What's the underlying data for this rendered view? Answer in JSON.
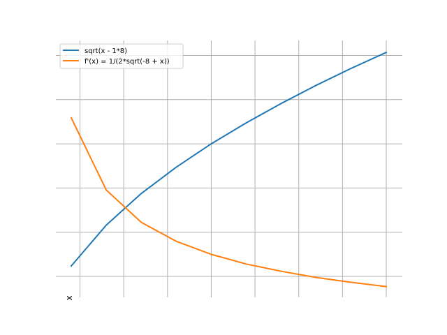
{
  "chart_data": {
    "type": "line",
    "title": "",
    "xlabel": "x",
    "ylabel": "",
    "xlim": [
      8.18,
      10.0
    ],
    "ylim": [
      0.33,
      1.46
    ],
    "grid": true,
    "x_gridlines": [
      8.25,
      8.5,
      8.75,
      9.0,
      9.25,
      9.5,
      9.75,
      10.0
    ],
    "y_gridlines": [
      0.4,
      0.6,
      0.8,
      1.0,
      1.2,
      1.4
    ],
    "legend_position": "top-left",
    "x": [
      8.2,
      8.4,
      8.6,
      8.8,
      9.0,
      9.2,
      9.4,
      9.6,
      9.8,
      10.0
    ],
    "series": [
      {
        "name": "sqrt(x - 1*8)",
        "color": "#1f77b4",
        "values": [
          0.447,
          0.632,
          0.775,
          0.894,
          1.0,
          1.095,
          1.183,
          1.265,
          1.342,
          1.414
        ]
      },
      {
        "name": "f'(x) = 1/(2*sqrt(-8 + x))",
        "color": "#ff7f0e",
        "values": [
          1.118,
          0.791,
          0.645,
          0.559,
          0.5,
          0.456,
          0.423,
          0.395,
          0.373,
          0.354
        ]
      }
    ]
  }
}
